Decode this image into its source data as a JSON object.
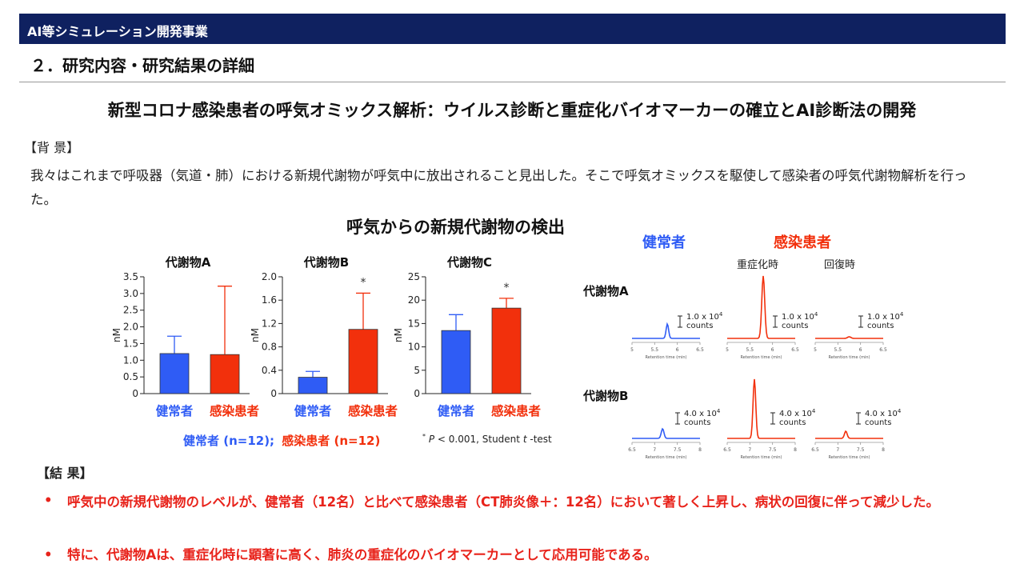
{
  "banner": {
    "title": "AI等シミュレーション開発事業"
  },
  "section": {
    "title": "２．研究内容・研究結果の詳細"
  },
  "main_title": "新型コロナ感染患者の呼気オミックス解析：ウイルス診断と重症化バイオマーカーの確立とAI診断法の開発",
  "background": {
    "heading": "【背 景】",
    "body": "我々はこれまで呼吸器（気道・肺）における新規代謝物が呼気中に放出されること見出した。そこで呼気オミックスを駆使して感染者の呼気代謝物解析を行った。"
  },
  "figure": {
    "title": "呼気からの新規代謝物の検出",
    "group_legend": {
      "healthy": "健常者 (n=12);",
      "infected": "感染患者 (n=12)"
    },
    "stat_note": {
      "star": "*",
      "p": "P",
      "mid": " < 0.001, Student ",
      "t": "t",
      "end": "-test"
    }
  },
  "chrom": {
    "healthy_header": "健常者",
    "infected_header": "感染患者",
    "severe_label": "重症化時",
    "recovery_label": "回復時",
    "row_a_label": "代謝物A",
    "row_b_label": "代謝物B",
    "scale_a": "1.0 x 10",
    "scale_b": "4.0 x 10",
    "scale_exp": "4",
    "counts": "counts",
    "xaxis_title": "Retention time (min)",
    "ticks_a": [
      "5",
      "5.5",
      "6",
      "6.5"
    ],
    "ticks_b": [
      "6.5",
      "7",
      "7.5",
      "8"
    ]
  },
  "colors": {
    "healthy": "#2f5cf5",
    "infected": "#f2300c",
    "banner": "#0f2160",
    "red_text": "#e8231b"
  },
  "chart_data": [
    {
      "type": "bar",
      "title": "代謝物A",
      "categories": [
        "健常者",
        "感染患者"
      ],
      "values": [
        1.2,
        1.17
      ],
      "errors": [
        0.52,
        2.05
      ],
      "ylabel": "nM",
      "ylim": [
        0,
        3.5
      ],
      "yticks": [
        "0",
        "0.5",
        "1.0",
        "1.5",
        "2.0",
        "2.5",
        "3.0",
        "3.5"
      ],
      "significant": false
    },
    {
      "type": "bar",
      "title": "代謝物B",
      "categories": [
        "健常者",
        "感染患者"
      ],
      "values": [
        0.28,
        1.1
      ],
      "errors": [
        0.1,
        0.62
      ],
      "ylabel": "nM",
      "ylim": [
        0,
        2.0
      ],
      "yticks": [
        "0",
        "0.4",
        "0.8",
        "1.2",
        "1.6",
        "2.0"
      ],
      "significant": true,
      "sig_mark": "*"
    },
    {
      "type": "bar",
      "title": "代謝物C",
      "categories": [
        "健常者",
        "感染患者"
      ],
      "values": [
        13.5,
        18.3
      ],
      "errors": [
        3.4,
        2.1
      ],
      "ylabel": "nM",
      "ylim": [
        0,
        25
      ],
      "yticks": [
        "0",
        "5",
        "10",
        "15",
        "20",
        "25"
      ],
      "significant": true,
      "sig_mark": "*"
    }
  ],
  "results": {
    "heading": "【結 果】",
    "bullet_mark": "•",
    "items": [
      "呼気中の新規代謝物のレベルが、健常者（12名）と比べて感染患者（CT肺炎像＋：12名）において著しく上昇し、病状の回復に伴って減少した。",
      "特に、代謝物Aは、重症化時に顕著に高く、肺炎の重症化のバイオマーカーとして応用可能である。"
    ]
  }
}
